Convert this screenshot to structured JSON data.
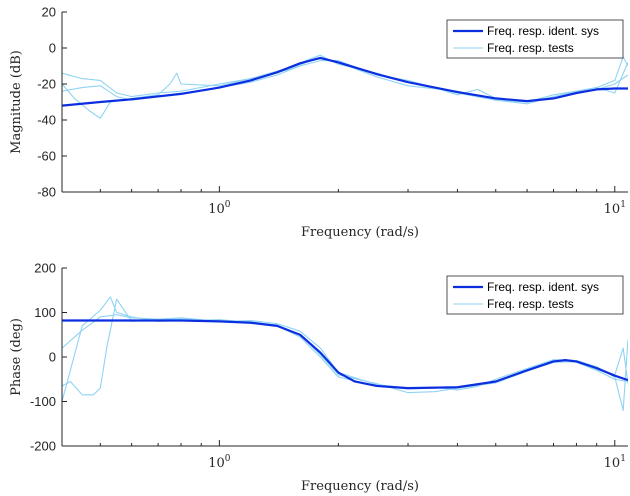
{
  "colors": {
    "ident": "#0b2fe0",
    "tests": "#8fd3f4",
    "axis": "#262626"
  },
  "chart_data": [
    {
      "type": "line",
      "xscale": "log",
      "xlim": [
        0.4,
        10.8
      ],
      "ylim": [
        -80,
        20
      ],
      "xlabel": "Frequency (rad/s)",
      "ylabel": "Magnitude (dB)",
      "xtick_major": [
        {
          "value": 1,
          "label_base": "10",
          "label_exp": "0"
        },
        {
          "value": 10,
          "label_base": "10",
          "label_exp": "1"
        }
      ],
      "yticks": [
        {
          "value": 20,
          "label": "20"
        },
        {
          "value": 0,
          "label": "0"
        },
        {
          "value": -20,
          "label": "-20"
        },
        {
          "value": -40,
          "label": "-40"
        },
        {
          "value": -60,
          "label": "-60"
        },
        {
          "value": -80,
          "label": "-80"
        }
      ],
      "grid": false,
      "legend": {
        "position": "top-right",
        "entries": [
          "Freq. resp. ident. sys",
          "Freq. resp. tests"
        ]
      },
      "series": [
        {
          "name": "Freq. resp. ident. sys",
          "role": "ident",
          "x": [
            0.4,
            0.5,
            0.6,
            0.8,
            1.0,
            1.2,
            1.4,
            1.6,
            1.8,
            2.0,
            2.5,
            3.0,
            4.0,
            5.0,
            6.0,
            7.0,
            8.0,
            9.0,
            10.0,
            10.8
          ],
          "y": [
            -32,
            -30,
            -28.5,
            -25.5,
            -22,
            -18,
            -13.5,
            -8.5,
            -5.5,
            -8,
            -14.5,
            -19,
            -24.5,
            -28,
            -29.5,
            -28,
            -25,
            -23,
            -22.5,
            -22.5
          ]
        },
        {
          "name": "Freq. resp. tests",
          "role": "tests",
          "x": [
            0.4,
            0.45,
            0.5,
            0.55,
            0.6,
            0.7,
            0.8,
            1.0,
            1.2,
            1.5,
            1.7,
            1.8,
            2.0,
            2.5,
            3.0,
            4.0,
            5.0,
            6.0,
            7.0,
            8.0,
            9.0,
            10.0,
            10.8
          ],
          "y": [
            -14,
            -17,
            -18,
            -25,
            -27,
            -25,
            -24,
            -20,
            -17,
            -11,
            -6,
            -4,
            -9,
            -14,
            -19,
            -25,
            -29,
            -30,
            -28,
            -25,
            -23,
            -20,
            -15
          ]
        },
        {
          "name": "Freq. resp. tests",
          "role": "tests",
          "x": [
            0.4,
            0.43,
            0.47,
            0.5,
            0.53,
            0.6,
            0.7,
            0.75,
            0.78,
            0.8,
            1.0,
            1.2,
            1.5,
            1.7,
            1.8,
            2.0,
            2.5,
            3.0,
            4.0,
            5.0,
            6.0,
            7.0,
            8.0,
            9.0,
            10.0,
            10.5,
            10.8
          ],
          "y": [
            -20,
            -28,
            -35,
            -39,
            -30,
            -28,
            -26,
            -20,
            -14,
            -20,
            -21,
            -17,
            -12,
            -7,
            -6,
            -8,
            -16,
            -21,
            -24,
            -29,
            -31,
            -27,
            -24,
            -22,
            -18,
            -5,
            -10
          ]
        },
        {
          "name": "Freq. resp. tests",
          "role": "tests",
          "x": [
            0.4,
            0.45,
            0.5,
            0.55,
            0.6,
            0.7,
            0.8,
            1.0,
            1.2,
            1.4,
            1.6,
            1.8,
            2.0,
            2.5,
            3.0,
            3.5,
            4.0,
            4.5,
            5.0,
            6.0,
            7.0,
            8.0,
            9.0,
            10.0,
            10.8
          ],
          "y": [
            -24,
            -22,
            -21,
            -27,
            -29,
            -27,
            -25,
            -22,
            -19,
            -15,
            -10,
            -7,
            -7,
            -15,
            -18,
            -22,
            -26,
            -23,
            -28,
            -30,
            -26,
            -24,
            -22,
            -25,
            -8
          ]
        }
      ]
    },
    {
      "type": "line",
      "xscale": "log",
      "xlim": [
        0.4,
        10.8
      ],
      "ylim": [
        -200,
        200
      ],
      "xlabel": "Frequency (rad/s)",
      "ylabel": "Phase (deg)",
      "xtick_major": [
        {
          "value": 1,
          "label_base": "10",
          "label_exp": "0"
        },
        {
          "value": 10,
          "label_base": "10",
          "label_exp": "1"
        }
      ],
      "yticks": [
        {
          "value": 200,
          "label": "200"
        },
        {
          "value": 100,
          "label": "100"
        },
        {
          "value": 0,
          "label": "0"
        },
        {
          "value": -100,
          "label": "-100"
        },
        {
          "value": -200,
          "label": "-200"
        }
      ],
      "grid": false,
      "legend": {
        "position": "top-right",
        "entries": [
          "Freq. resp. ident. sys",
          "Freq. resp. tests"
        ]
      },
      "series": [
        {
          "name": "Freq. resp. ident. sys",
          "role": "ident",
          "x": [
            0.4,
            0.6,
            0.8,
            1.0,
            1.2,
            1.4,
            1.6,
            1.8,
            2.0,
            2.2,
            2.5,
            3.0,
            4.0,
            5.0,
            6.0,
            7.0,
            7.5,
            8.0,
            9.0,
            10.0,
            10.8
          ],
          "y": [
            82,
            82,
            82,
            80,
            77,
            70,
            50,
            10,
            -35,
            -55,
            -65,
            -70,
            -68,
            -55,
            -30,
            -10,
            -7,
            -10,
            -25,
            -42,
            -52
          ]
        },
        {
          "name": "Freq. resp. tests",
          "role": "tests",
          "x": [
            0.4,
            0.42,
            0.45,
            0.48,
            0.5,
            0.52,
            0.55,
            0.6,
            0.7,
            0.8,
            1.0,
            1.2,
            1.4,
            1.6,
            1.8,
            2.0,
            2.5,
            3.0,
            4.0,
            5.0,
            6.0,
            7.0,
            8.0,
            9.0,
            10.0,
            10.8
          ],
          "y": [
            -65,
            -55,
            -85,
            -85,
            -70,
            25,
            130,
            80,
            85,
            85,
            82,
            80,
            70,
            45,
            0,
            -45,
            -65,
            -72,
            -68,
            -55,
            -28,
            -8,
            -12,
            -30,
            -50,
            -55
          ]
        },
        {
          "name": "Freq. resp. tests",
          "role": "tests",
          "x": [
            0.4,
            0.45,
            0.5,
            0.53,
            0.55,
            0.6,
            0.7,
            0.8,
            1.0,
            1.2,
            1.4,
            1.6,
            1.8,
            2.0,
            2.5,
            3.0,
            3.5,
            4.0,
            5.0,
            6.0,
            7.0,
            8.0,
            9.0,
            10.0,
            10.5,
            10.8
          ],
          "y": [
            -100,
            70,
            105,
            135,
            100,
            90,
            80,
            82,
            84,
            78,
            72,
            50,
            5,
            -40,
            -60,
            -80,
            -78,
            -70,
            -58,
            -32,
            -12,
            -10,
            -28,
            -40,
            20,
            -60
          ]
        },
        {
          "name": "Freq. resp. tests",
          "role": "tests",
          "x": [
            0.4,
            0.45,
            0.5,
            0.55,
            0.6,
            0.7,
            0.8,
            1.0,
            1.2,
            1.4,
            1.6,
            1.8,
            2.0,
            2.5,
            3.0,
            3.5,
            4.0,
            4.5,
            5.0,
            6.0,
            7.0,
            8.0,
            9.0,
            10.0,
            10.5,
            10.8
          ],
          "y": [
            20,
            60,
            90,
            95,
            88,
            85,
            88,
            80,
            82,
            75,
            58,
            20,
            -35,
            -62,
            -70,
            -68,
            -74,
            -66,
            -50,
            -26,
            -6,
            -8,
            -22,
            -45,
            -120,
            40
          ]
        }
      ]
    }
  ]
}
